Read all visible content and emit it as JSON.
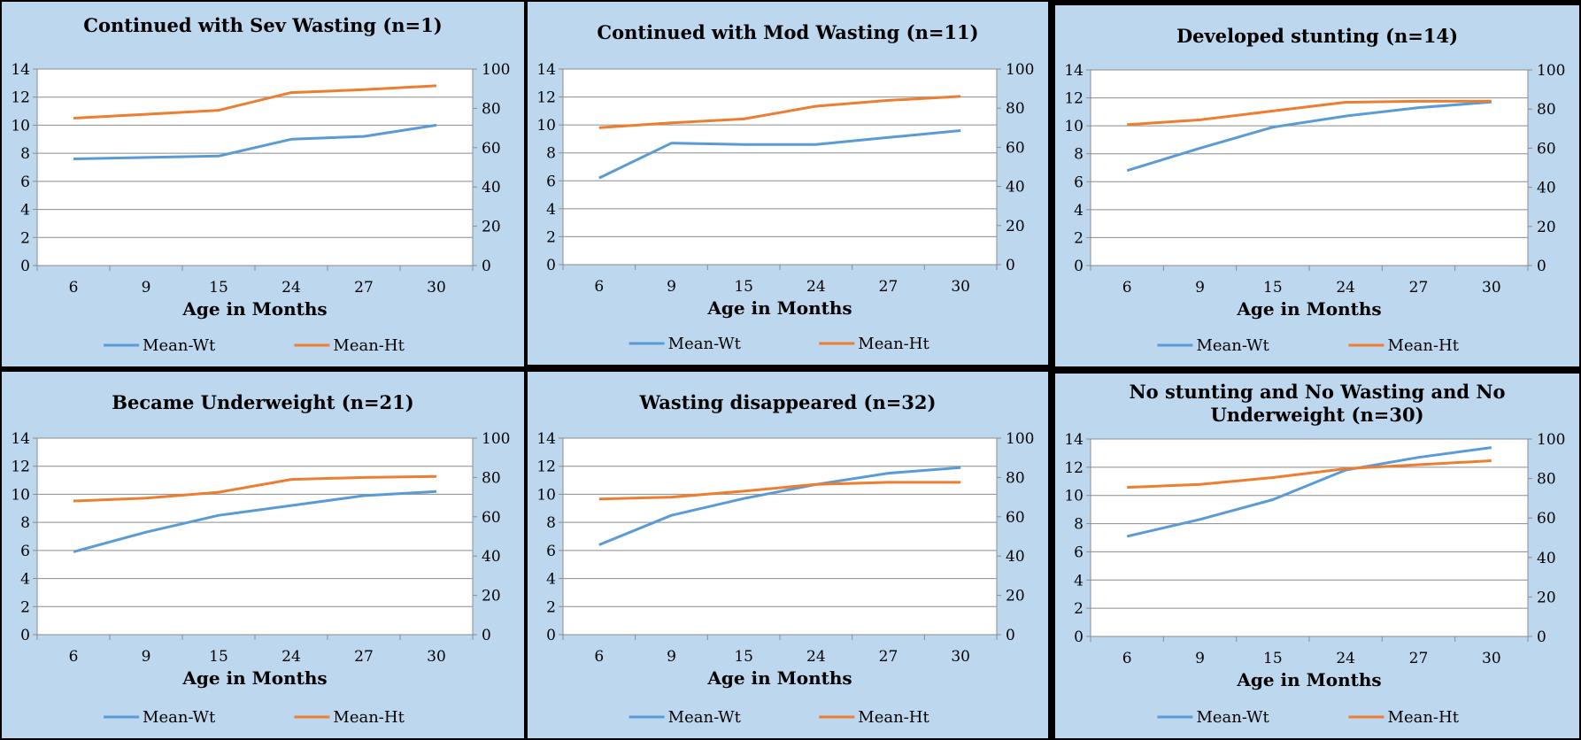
{
  "chart_data": [
    {
      "type": "line",
      "title": "Continued with Sev Wasting (n=1)",
      "categories": [
        "6",
        "9",
        "15",
        "24",
        "27",
        "30"
      ],
      "xlabel": "Age in Months",
      "ylim": [
        0,
        14
      ],
      "yticks": [
        0,
        2,
        4,
        6,
        8,
        10,
        12,
        14
      ],
      "y2lim": [
        0,
        100
      ],
      "y2ticks": [
        0,
        20,
        40,
        60,
        80,
        100
      ],
      "grid": true,
      "legend": "bottom",
      "series": [
        {
          "name": "Mean-Wt",
          "axis": "left",
          "color": "#5b9bd5",
          "values": [
            7.6,
            7.7,
            7.8,
            9.0,
            9.2,
            10.0
          ]
        },
        {
          "name": "Mean-Ht",
          "axis": "right",
          "color": "#ed7d31",
          "values": [
            75,
            77,
            79,
            88,
            89.5,
            91.5
          ]
        }
      ]
    },
    {
      "type": "line",
      "title": "Continued with Mod Wasting (n=11)",
      "categories": [
        "6",
        "9",
        "15",
        "24",
        "27",
        "30"
      ],
      "xlabel": "Age in Months",
      "ylim": [
        0,
        14
      ],
      "yticks": [
        0,
        2,
        4,
        6,
        8,
        10,
        12,
        14
      ],
      "y2lim": [
        0,
        100
      ],
      "y2ticks": [
        0,
        20,
        40,
        60,
        80,
        100
      ],
      "grid": true,
      "legend": "bottom",
      "series": [
        {
          "name": "Mean-Wt",
          "axis": "left",
          "color": "#5b9bd5",
          "values": [
            6.2,
            8.7,
            8.6,
            8.6,
            9.1,
            9.6
          ]
        },
        {
          "name": "Mean-Ht",
          "axis": "right",
          "color": "#ed7d31",
          "values": [
            70,
            72.5,
            74.5,
            81,
            84,
            86
          ]
        }
      ]
    },
    {
      "type": "line",
      "title": "Developed stunting (n=14)",
      "categories": [
        "6",
        "9",
        "15",
        "24",
        "27",
        "30"
      ],
      "xlabel": "Age in Months",
      "ylim": [
        0,
        14
      ],
      "yticks": [
        0,
        2,
        4,
        6,
        8,
        10,
        12,
        14
      ],
      "y2lim": [
        0,
        100
      ],
      "y2ticks": [
        0,
        20,
        40,
        60,
        80,
        100
      ],
      "grid": true,
      "legend": "bottom",
      "series": [
        {
          "name": "Mean-Wt",
          "axis": "left",
          "color": "#5b9bd5",
          "values": [
            6.8,
            8.4,
            9.9,
            10.7,
            11.3,
            11.7
          ]
        },
        {
          "name": "Mean-Ht",
          "axis": "right",
          "color": "#ed7d31",
          "values": [
            72,
            74.5,
            79,
            83.5,
            84,
            84
          ]
        }
      ]
    },
    {
      "type": "line",
      "title": "Became Underweight (n=21)",
      "categories": [
        "6",
        "9",
        "15",
        "24",
        "27",
        "30"
      ],
      "xlabel": "Age in Months",
      "ylim": [
        0,
        14
      ],
      "yticks": [
        0,
        2,
        4,
        6,
        8,
        10,
        12,
        14
      ],
      "y2lim": [
        0,
        100
      ],
      "y2ticks": [
        0,
        20,
        40,
        60,
        80,
        100
      ],
      "grid": true,
      "legend": "bottom",
      "series": [
        {
          "name": "Mean-Wt",
          "axis": "left",
          "color": "#5b9bd5",
          "values": [
            5.9,
            7.3,
            8.5,
            9.2,
            9.9,
            10.2
          ]
        },
        {
          "name": "Mean-Ht",
          "axis": "right",
          "color": "#ed7d31",
          "values": [
            68,
            69.5,
            72.5,
            79,
            80,
            80.5
          ]
        }
      ]
    },
    {
      "type": "line",
      "title": "Wasting disappeared (n=32)",
      "categories": [
        "6",
        "9",
        "15",
        "24",
        "27",
        "30"
      ],
      "xlabel": "Age in Months",
      "ylim": [
        0,
        14
      ],
      "yticks": [
        0,
        2,
        4,
        6,
        8,
        10,
        12,
        14
      ],
      "y2lim": [
        0,
        100
      ],
      "y2ticks": [
        0,
        20,
        40,
        60,
        80,
        100
      ],
      "grid": true,
      "legend": "bottom",
      "series": [
        {
          "name": "Mean-Wt",
          "axis": "left",
          "color": "#5b9bd5",
          "values": [
            6.4,
            8.5,
            9.7,
            10.7,
            11.5,
            11.9
          ]
        },
        {
          "name": "Mean-Ht",
          "axis": "right",
          "color": "#ed7d31",
          "values": [
            69,
            70,
            73,
            76.5,
            77.5,
            77.5
          ]
        }
      ]
    },
    {
      "type": "line",
      "title": "No stunting and No Wasting and No Underweight (n=30)",
      "categories": [
        "6",
        "9",
        "15",
        "24",
        "27",
        "30"
      ],
      "xlabel": "Age in Months",
      "ylim": [
        0,
        14
      ],
      "yticks": [
        0,
        2,
        4,
        6,
        8,
        10,
        12,
        14
      ],
      "y2lim": [
        0,
        100
      ],
      "y2ticks": [
        0,
        20,
        40,
        60,
        80,
        100
      ],
      "grid": true,
      "legend": "bottom",
      "series": [
        {
          "name": "Mean-Wt",
          "axis": "left",
          "color": "#5b9bd5",
          "values": [
            7.1,
            8.3,
            9.7,
            11.8,
            12.7,
            13.4
          ]
        },
        {
          "name": "Mean-Ht",
          "axis": "right",
          "color": "#ed7d31",
          "values": [
            75.5,
            77,
            80.5,
            85,
            87,
            89
          ]
        }
      ]
    }
  ]
}
